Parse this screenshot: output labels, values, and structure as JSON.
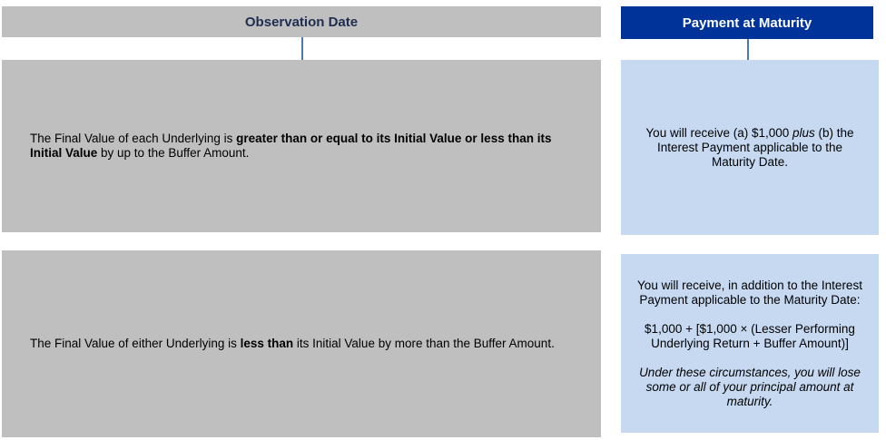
{
  "headers": {
    "observation": "Observation Date",
    "payment": "Payment at Maturity"
  },
  "rows": [
    {
      "condition": {
        "pre": "The Final Value of each Underlying is ",
        "bold": "greater than or equal to its Initial Value or less than its Initial Value",
        "post": " by up to the Buffer Amount."
      },
      "payment": {
        "pre": "You will receive (a) $1,000 ",
        "italic": "plus",
        "post": " (b) the Interest Payment applicable to the Maturity Date."
      }
    },
    {
      "condition": {
        "pre": "The Final Value of either Underlying is ",
        "bold": "less than",
        "post": " its Initial Value by more than the Buffer Amount."
      },
      "payment": {
        "line1": "You will receive, in addition to the Interest Payment applicable to the Maturity Date:",
        "formula": "$1,000 + [$1,000 × (Lesser Performing Underlying Return + Buffer Amount)]",
        "note": "Under these circumstances, you will lose some or all of your principal amount at maturity."
      }
    }
  ],
  "colors": {
    "gray": "#bfbfbf",
    "navy": "#003399",
    "light_blue": "#c6d9f1",
    "connector": "#4f78a8"
  }
}
